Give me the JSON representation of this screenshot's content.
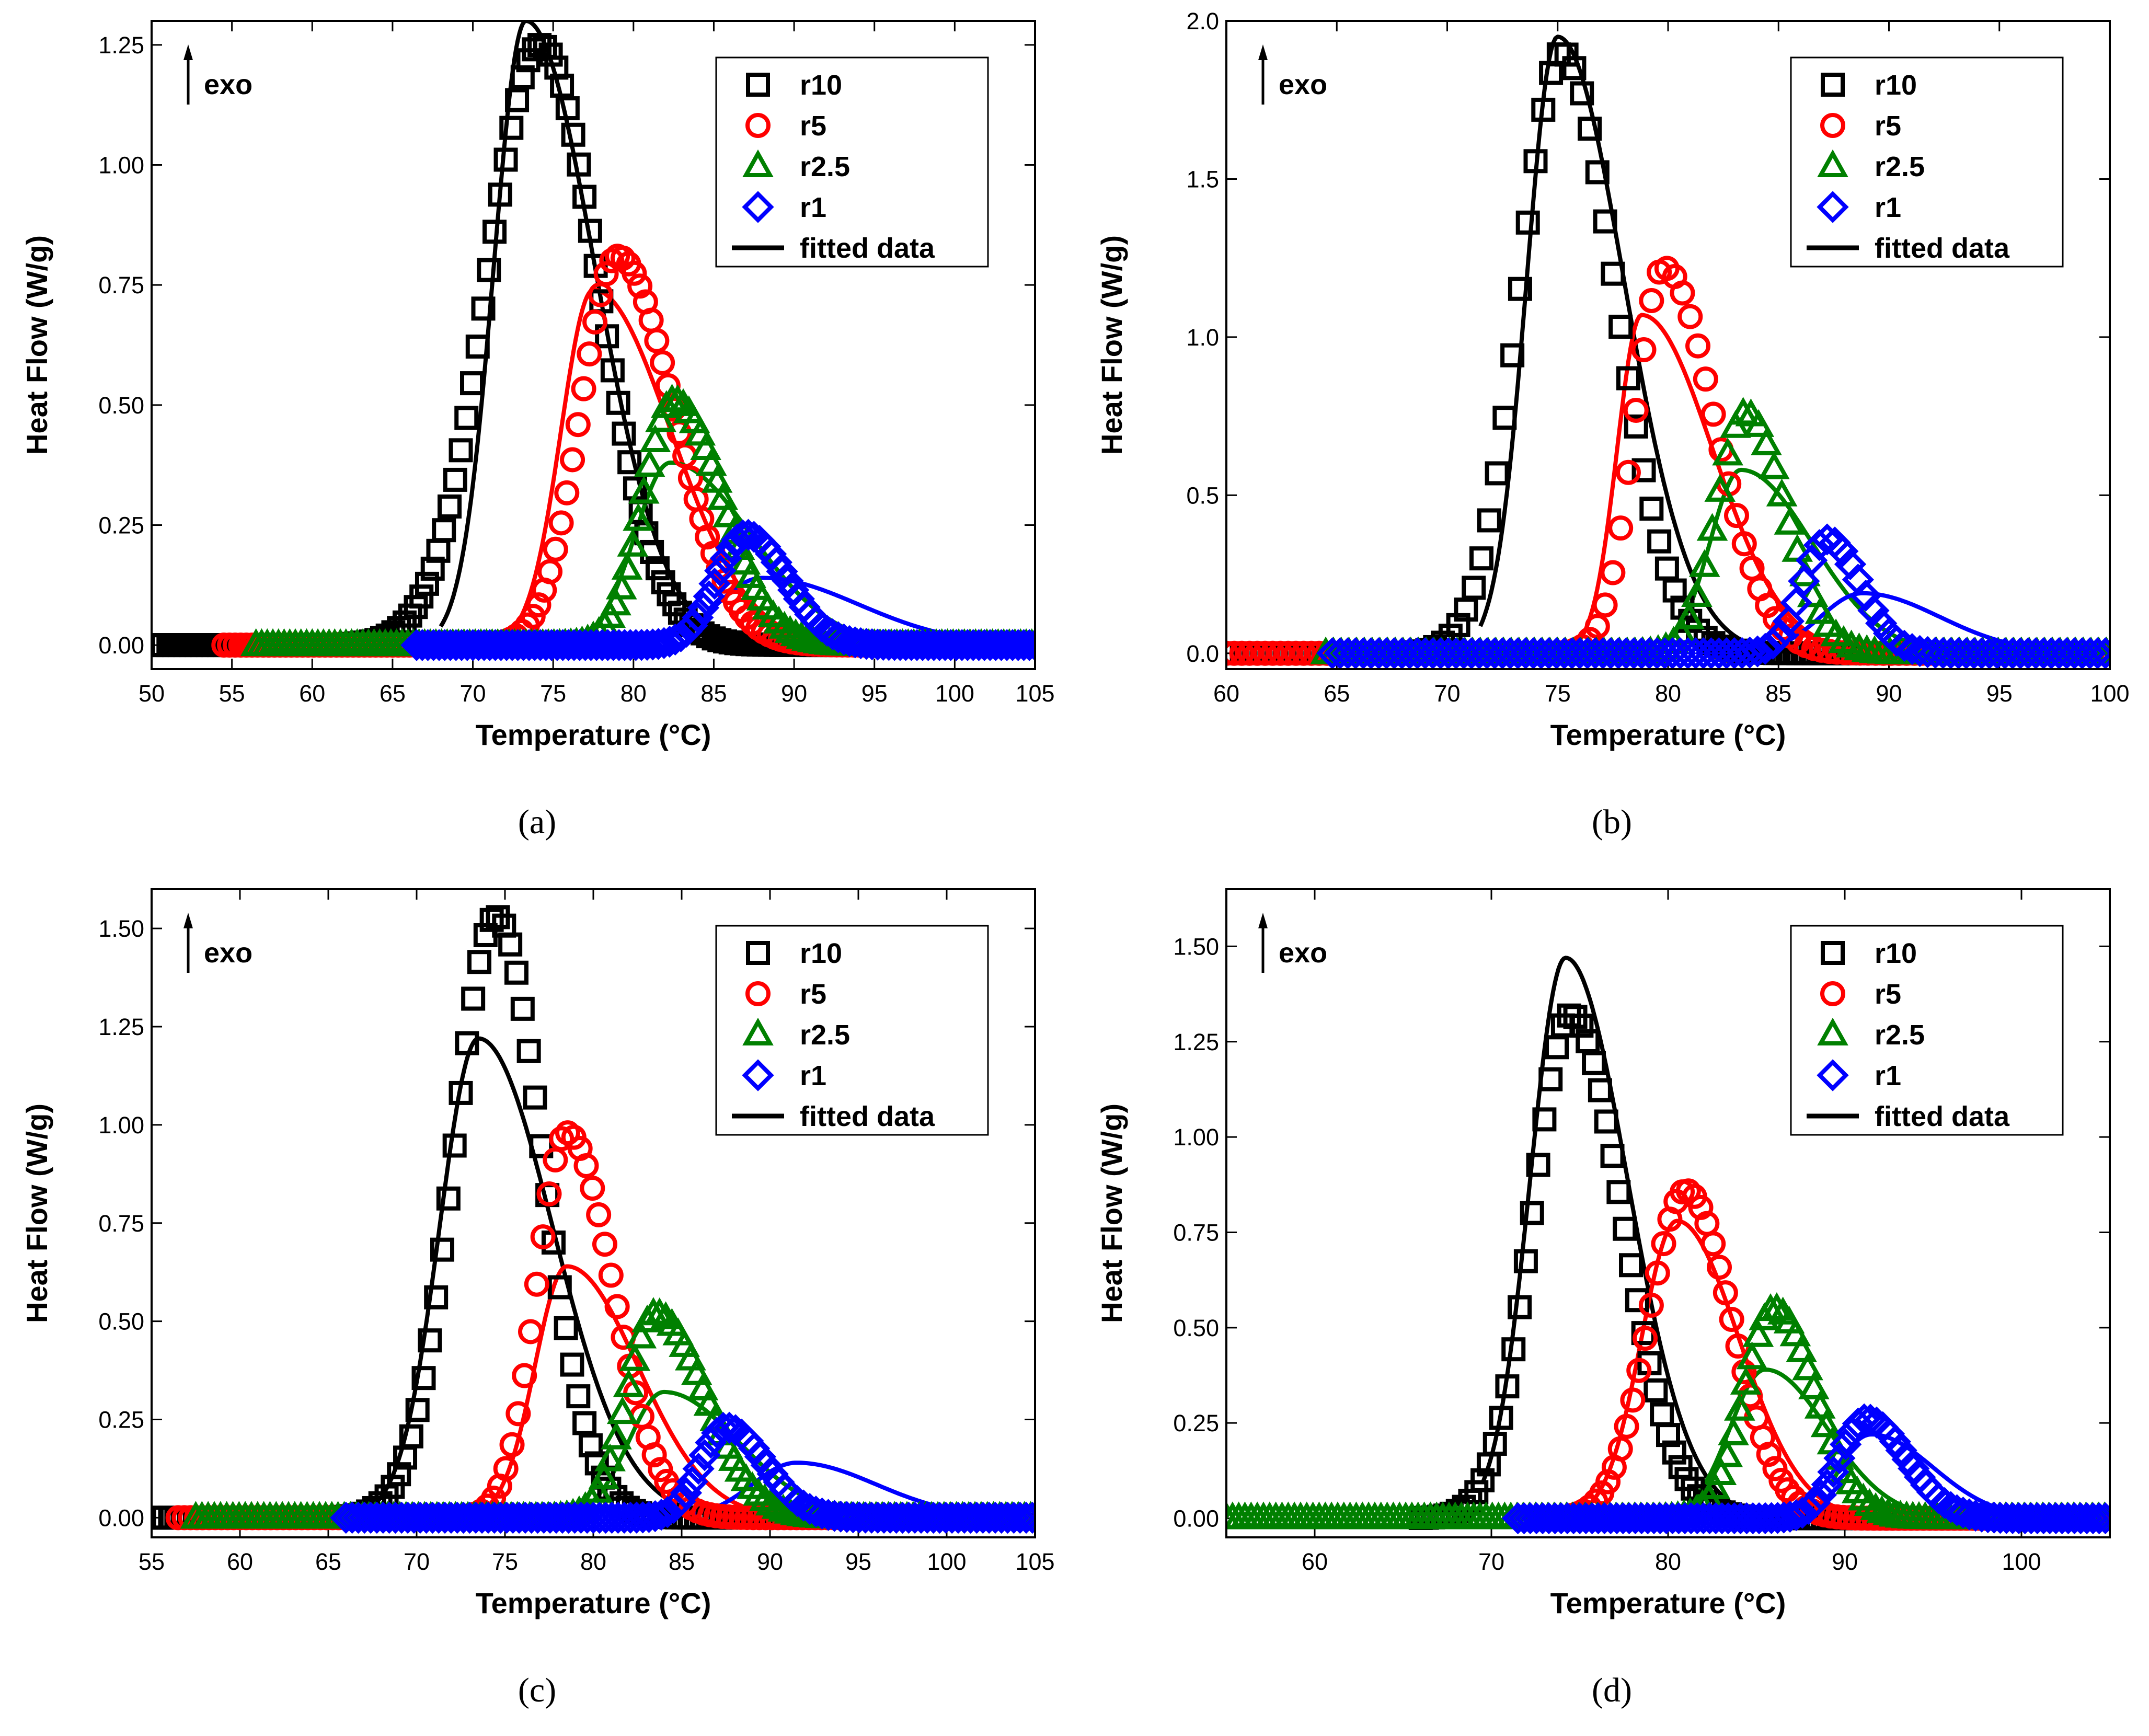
{
  "figure": {
    "panel_captions": [
      "(a)",
      "(b)",
      "(c)",
      "(d)"
    ]
  },
  "colors": {
    "r10": "#000000",
    "r5": "#ff0000",
    "r2.5": "#008000",
    "r1": "#0000ff",
    "fitted": "#000000"
  },
  "chart_data": [
    {
      "id": "a",
      "type": "scatter",
      "xlabel": "Temperature (°C)",
      "ylabel": "Heat Flow (W/g)",
      "annotation": "exo",
      "xlim": [
        50,
        105
      ],
      "ylim": [
        -0.05,
        1.3
      ],
      "xticks": [
        50,
        55,
        60,
        65,
        70,
        75,
        80,
        85,
        90,
        95,
        100,
        105
      ],
      "yticks": [
        0,
        0.25,
        0.5,
        0.75,
        1.0,
        1.25
      ],
      "ytick_labels": [
        "0.00",
        "0.25",
        "0.50",
        "0.75",
        "1.00",
        "1.25"
      ],
      "legend": [
        "r10",
        "r5",
        "r2.5",
        "r1",
        "fitted data"
      ],
      "series": [
        {
          "name": "r10",
          "marker": "square",
          "start": 50,
          "peak": 74.2,
          "height": 1.25,
          "sl": 3.3,
          "sr": 3.6
        },
        {
          "name": "r5",
          "marker": "circle",
          "start": 54.5,
          "peak": 79.0,
          "height": 0.81,
          "sl": 2.3,
          "sr": 3.5
        },
        {
          "name": "r2.5",
          "marker": "triangle",
          "start": 56.5,
          "peak": 82.5,
          "height": 0.51,
          "sl": 1.9,
          "sr": 3.0
        },
        {
          "name": "r1",
          "marker": "diamond",
          "start": 66.5,
          "peak": 87.0,
          "height": 0.23,
          "sl": 1.8,
          "sr": 2.5
        }
      ],
      "fits": [
        {
          "name": "r10",
          "start": 68.0,
          "peak": 73.3,
          "height": 1.3,
          "sl": 2.0,
          "sr": 4.3
        },
        {
          "name": "r5",
          "start": 72.0,
          "peak": 77.5,
          "height": 0.74,
          "sl": 2.0,
          "sr": 4.8
        },
        {
          "name": "r2.5",
          "start": 76.5,
          "peak": 82.3,
          "height": 0.38,
          "sl": 2.2,
          "sr": 5.0
        },
        {
          "name": "r1",
          "start": 80.5,
          "peak": 88.0,
          "height": 0.14,
          "sl": 2.8,
          "sr": 6.0
        }
      ]
    },
    {
      "id": "b",
      "type": "scatter",
      "xlabel": "Temperature (°C)",
      "ylabel": "Heat Flow (W/g)",
      "annotation": "exo",
      "xlim": [
        60,
        100
      ],
      "ylim": [
        -0.05,
        2.0
      ],
      "xticks": [
        60,
        65,
        70,
        75,
        80,
        85,
        90,
        95,
        100
      ],
      "yticks": [
        0,
        0.5,
        1.0,
        1.5,
        2.0
      ],
      "ytick_labels": [
        "0.0",
        "0.5",
        "1.0",
        "1.5",
        "2.0"
      ],
      "legend": [
        "r10",
        "r5",
        "r2.5",
        "r1",
        "fitted data"
      ],
      "series": [
        {
          "name": "r10",
          "marker": "square",
          "start": 60,
          "peak": 75.2,
          "height": 1.9,
          "sl": 1.9,
          "sr": 2.4
        },
        {
          "name": "r5",
          "marker": "circle",
          "start": 60,
          "peak": 79.8,
          "height": 1.22,
          "sl": 1.3,
          "sr": 2.3
        },
        {
          "name": "r2.5",
          "marker": "triangle",
          "start": 64.5,
          "peak": 83.5,
          "height": 0.76,
          "sl": 1.3,
          "sr": 1.8
        },
        {
          "name": "r1",
          "marker": "diamond",
          "start": 64.8,
          "peak": 87.2,
          "height": 0.36,
          "sl": 1.1,
          "sr": 1.5
        }
      ],
      "fits": [
        {
          "name": "r10",
          "start": 71.5,
          "peak": 75.0,
          "height": 1.95,
          "sl": 1.4,
          "sr": 3.0
        },
        {
          "name": "r5",
          "start": 75.5,
          "peak": 78.8,
          "height": 1.07,
          "sl": 1.1,
          "sr": 3.2
        },
        {
          "name": "r2.5",
          "start": 79.0,
          "peak": 83.3,
          "height": 0.58,
          "sl": 1.4,
          "sr": 3.2
        },
        {
          "name": "r1",
          "start": 83.0,
          "peak": 88.8,
          "height": 0.19,
          "sl": 1.9,
          "sr": 3.5
        }
      ]
    },
    {
      "id": "c",
      "type": "scatter",
      "xlabel": "Temperature (°C)",
      "ylabel": "Heat Flow (W/g)",
      "annotation": "exo",
      "xlim": [
        55,
        105
      ],
      "ylim": [
        -0.05,
        1.6
      ],
      "xticks": [
        55,
        60,
        65,
        70,
        75,
        80,
        85,
        90,
        95,
        100,
        105
      ],
      "yticks": [
        0,
        0.25,
        0.5,
        0.75,
        1.0,
        1.25,
        1.5
      ],
      "ytick_labels": [
        "0.00",
        "0.25",
        "0.50",
        "0.75",
        "1.00",
        "1.25",
        "1.50"
      ],
      "legend": [
        "r10",
        "r5",
        "r2.5",
        "r1",
        "fitted data"
      ],
      "series": [
        {
          "name": "r10",
          "marker": "square",
          "start": 55,
          "peak": 74.5,
          "height": 1.53,
          "sl": 2.4,
          "sr": 2.6
        },
        {
          "name": "r5",
          "marker": "circle",
          "start": 56.5,
          "peak": 78.5,
          "height": 0.98,
          "sl": 1.7,
          "sr": 2.6
        },
        {
          "name": "r2.5",
          "marker": "triangle",
          "start": 57.5,
          "peak": 83.5,
          "height": 0.52,
          "sl": 1.6,
          "sr": 2.8
        },
        {
          "name": "r1",
          "marker": "diamond",
          "start": 66.0,
          "peak": 87.5,
          "height": 0.23,
          "sl": 1.4,
          "sr": 2.2
        }
      ],
      "fits": [
        {
          "name": "r10",
          "start": 67.0,
          "peak": 73.5,
          "height": 1.22,
          "sl": 2.2,
          "sr": 4.2
        },
        {
          "name": "r5",
          "start": 73.0,
          "peak": 78.5,
          "height": 0.64,
          "sl": 1.8,
          "sr": 4.0
        },
        {
          "name": "r2.5",
          "start": 78.0,
          "peak": 84.0,
          "height": 0.32,
          "sl": 2.0,
          "sr": 4.2
        },
        {
          "name": "r1",
          "start": 84.0,
          "peak": 91.5,
          "height": 0.14,
          "sl": 2.5,
          "sr": 4.5
        }
      ]
    },
    {
      "id": "d",
      "type": "scatter",
      "xlabel": "Temperature (°C)",
      "ylabel": "Heat Flow (W/g)",
      "annotation": "exo",
      "xlim": [
        55,
        105
      ],
      "ylim": [
        -0.05,
        1.65
      ],
      "xticks": [
        60,
        70,
        80,
        90,
        100
      ],
      "yticks": [
        0,
        0.25,
        0.5,
        0.75,
        1.0,
        1.25,
        1.5
      ],
      "ytick_labels": [
        "0.00",
        "0.25",
        "0.50",
        "0.75",
        "1.00",
        "1.25",
        "1.50"
      ],
      "legend": [
        "r10",
        "r5",
        "r2.5",
        "r1",
        "fitted data"
      ],
      "series": [
        {
          "name": "r10",
          "marker": "square",
          "start": 66.0,
          "peak": 74.5,
          "height": 1.32,
          "sl": 2.2,
          "sr": 2.9
        },
        {
          "name": "r5",
          "marker": "circle",
          "start": 74.5,
          "peak": 81.0,
          "height": 0.86,
          "sl": 2.1,
          "sr": 2.6
        },
        {
          "name": "r2.5",
          "marker": "triangle",
          "start": 55,
          "peak": 86.0,
          "height": 0.55,
          "sl": 1.7,
          "sr": 2.3
        },
        {
          "name": "r1",
          "marker": "diamond",
          "start": 71.5,
          "peak": 91.2,
          "height": 0.26,
          "sl": 1.5,
          "sr": 2.3
        }
      ],
      "fits": [
        {
          "name": "r10",
          "start": 69.5,
          "peak": 74.2,
          "height": 1.47,
          "sl": 2.0,
          "sr": 3.5
        },
        {
          "name": "r5",
          "start": 74.5,
          "peak": 80.5,
          "height": 0.78,
          "sl": 2.0,
          "sr": 3.5
        },
        {
          "name": "r2.5",
          "start": 79.5,
          "peak": 85.5,
          "height": 0.39,
          "sl": 2.0,
          "sr": 3.5
        },
        {
          "name": "r1",
          "start": 85.0,
          "peak": 91.5,
          "height": 0.22,
          "sl": 2.0,
          "sr": 3.5
        }
      ]
    }
  ]
}
